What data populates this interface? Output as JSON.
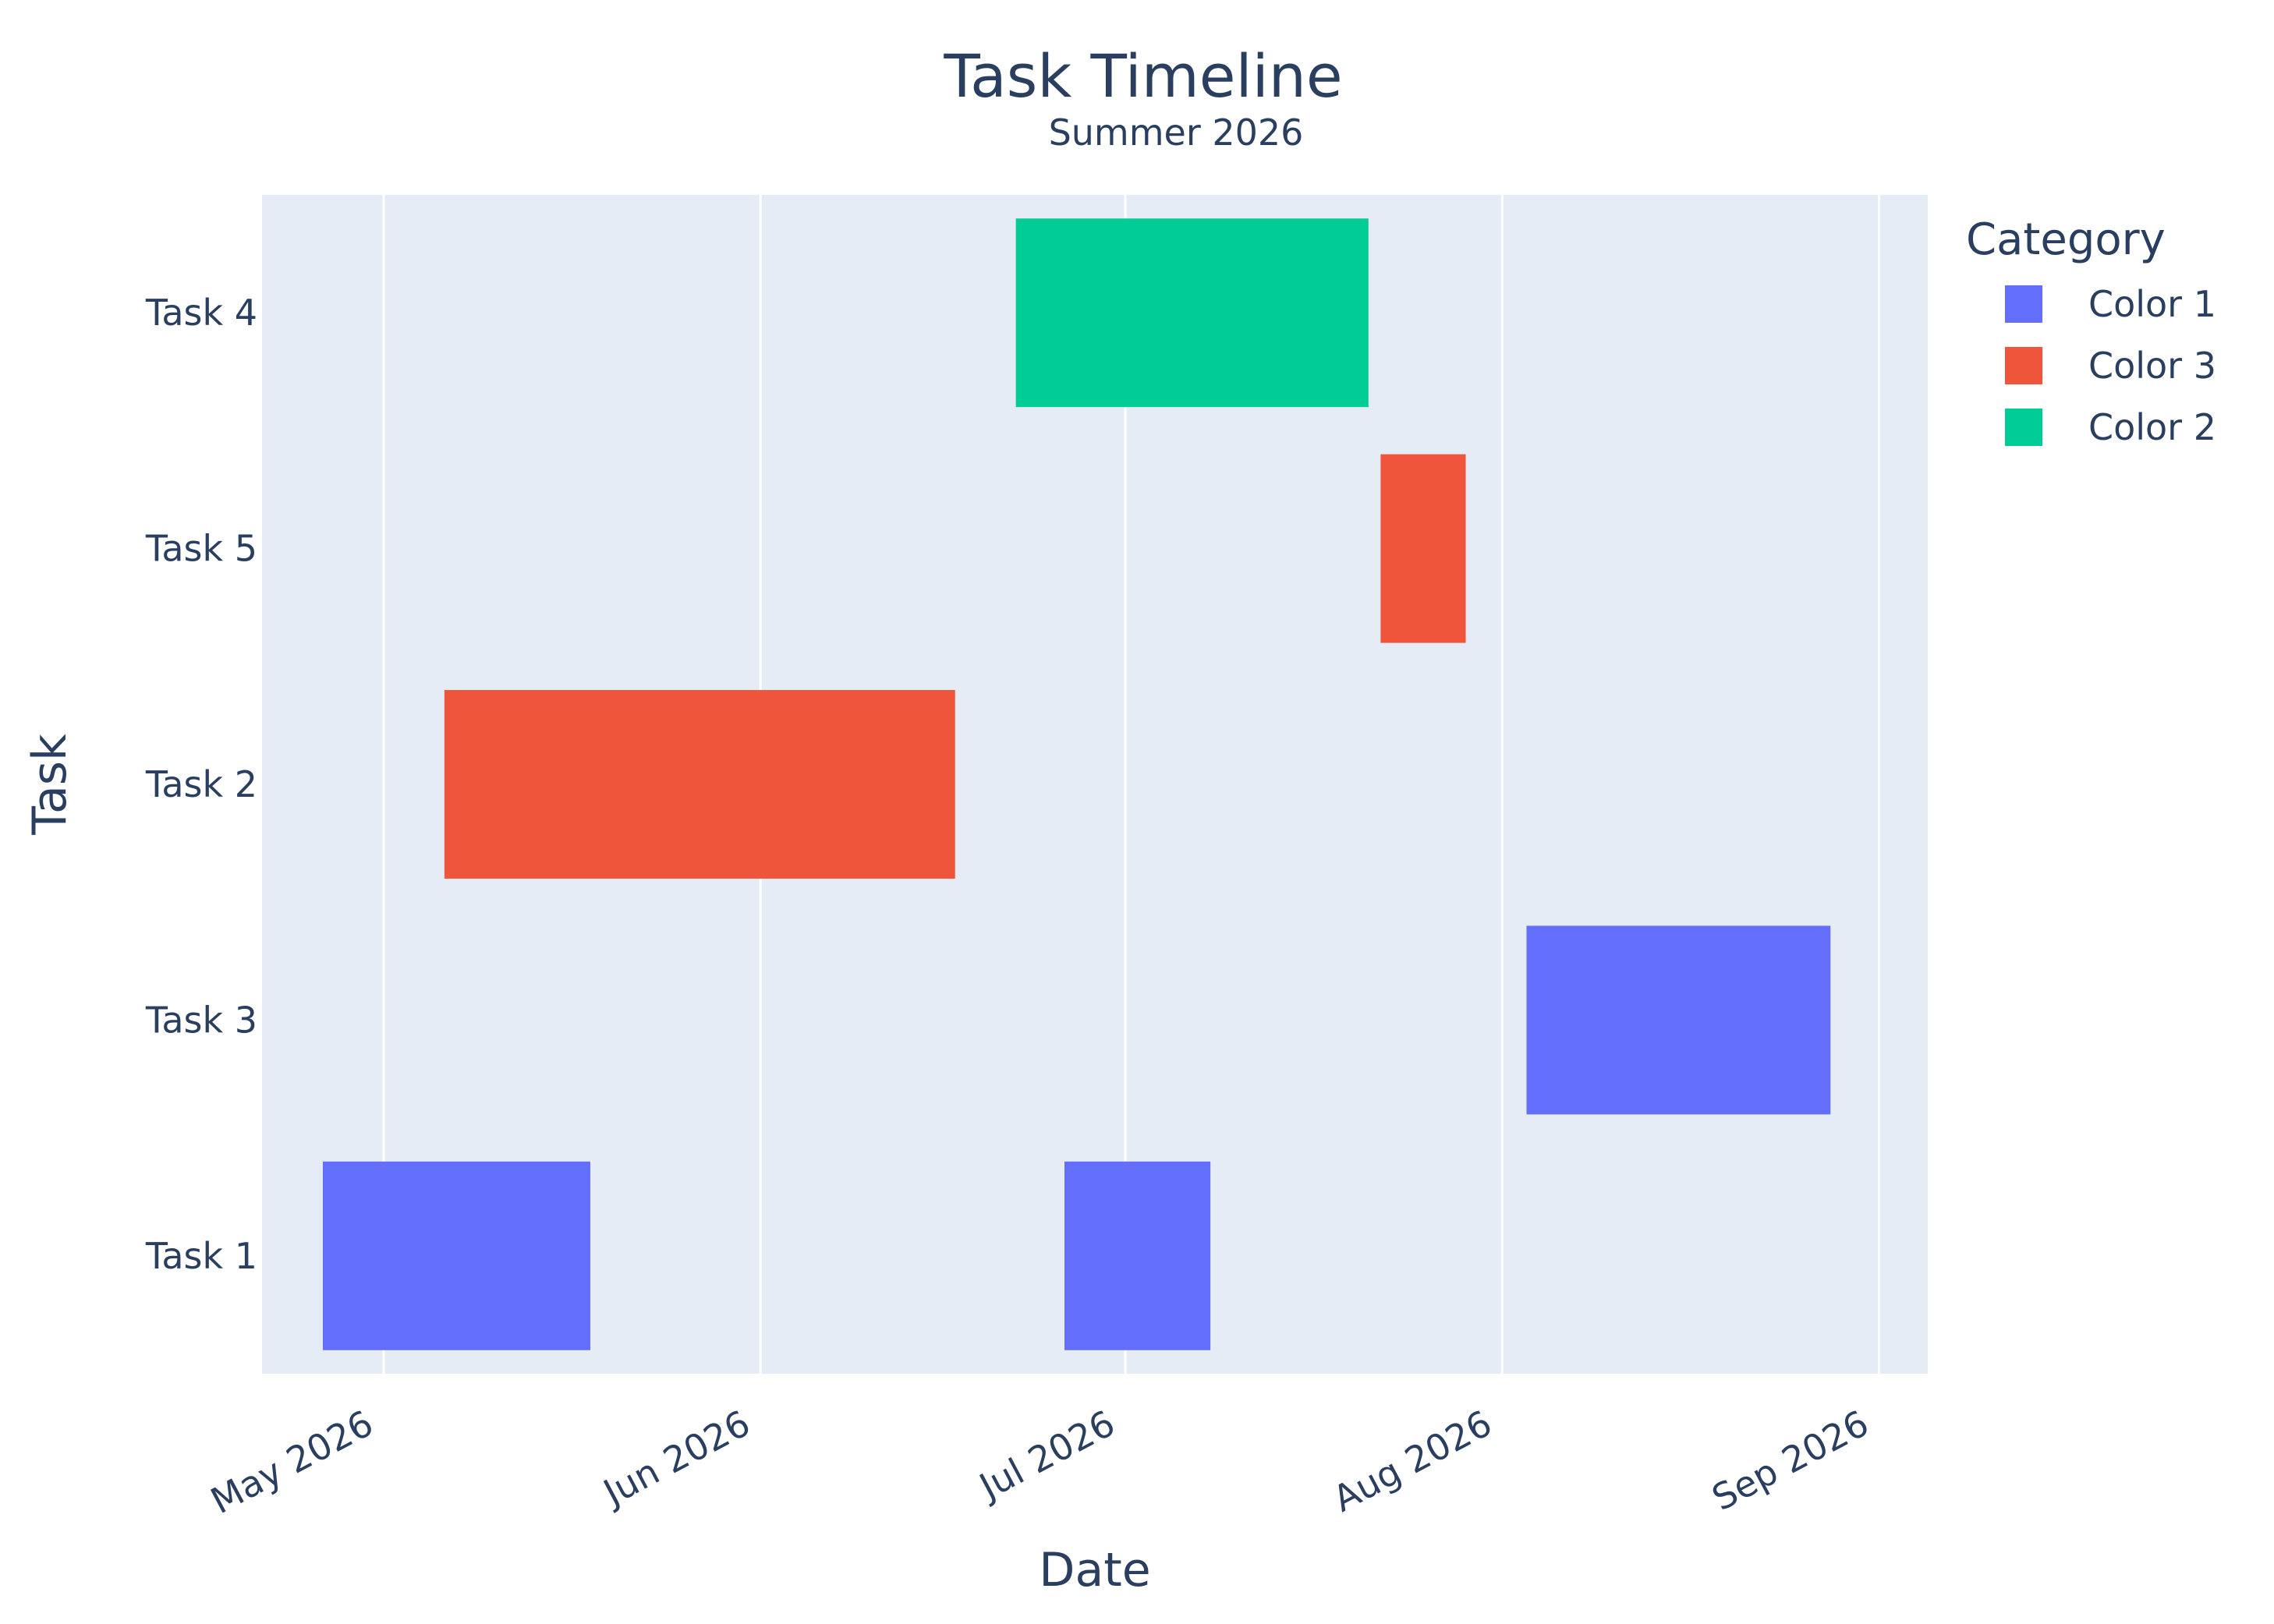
{
  "chart_data": {
    "type": "gantt",
    "title": "Task Timeline",
    "subtitle": "Summer 2026",
    "xlabel": "Date",
    "ylabel": "Task",
    "x_range": [
      "2026-04-21",
      "2026-09-05"
    ],
    "x_ticks": [
      {
        "date": "2026-05-01",
        "label": "May 2026"
      },
      {
        "date": "2026-06-01",
        "label": "Jun 2026"
      },
      {
        "date": "2026-07-01",
        "label": "Jul 2026"
      },
      {
        "date": "2026-08-01",
        "label": "Aug 2026"
      },
      {
        "date": "2026-09-01",
        "label": "Sep 2026"
      }
    ],
    "categories": [
      "Task 4",
      "Task 5",
      "Task 2",
      "Task 3",
      "Task 1"
    ],
    "grid": true,
    "legend": {
      "title": "Category",
      "placement": "top-right",
      "entries": [
        {
          "name": "Color 1",
          "color": "#636efa"
        },
        {
          "name": "Color 3",
          "color": "#ef553b"
        },
        {
          "name": "Color 2",
          "color": "#00cc96"
        }
      ]
    },
    "bars": [
      {
        "task": "Task 1",
        "start": "2026-04-26",
        "end": "2026-05-18",
        "category": "Color 1"
      },
      {
        "task": "Task 1",
        "start": "2026-06-26",
        "end": "2026-07-08",
        "category": "Color 1"
      },
      {
        "task": "Task 3",
        "start": "2026-08-03",
        "end": "2026-08-28",
        "category": "Color 1"
      },
      {
        "task": "Task 2",
        "start": "2026-05-06",
        "end": "2026-06-17",
        "category": "Color 3"
      },
      {
        "task": "Task 5",
        "start": "2026-07-22",
        "end": "2026-07-29",
        "category": "Color 3"
      },
      {
        "task": "Task 4",
        "start": "2026-06-22",
        "end": "2026-07-21",
        "category": "Color 2"
      }
    ]
  },
  "colors": {
    "plot_background": "#e5ecf6",
    "gridline": "#ffffff",
    "text": "#2a3f5f"
  }
}
